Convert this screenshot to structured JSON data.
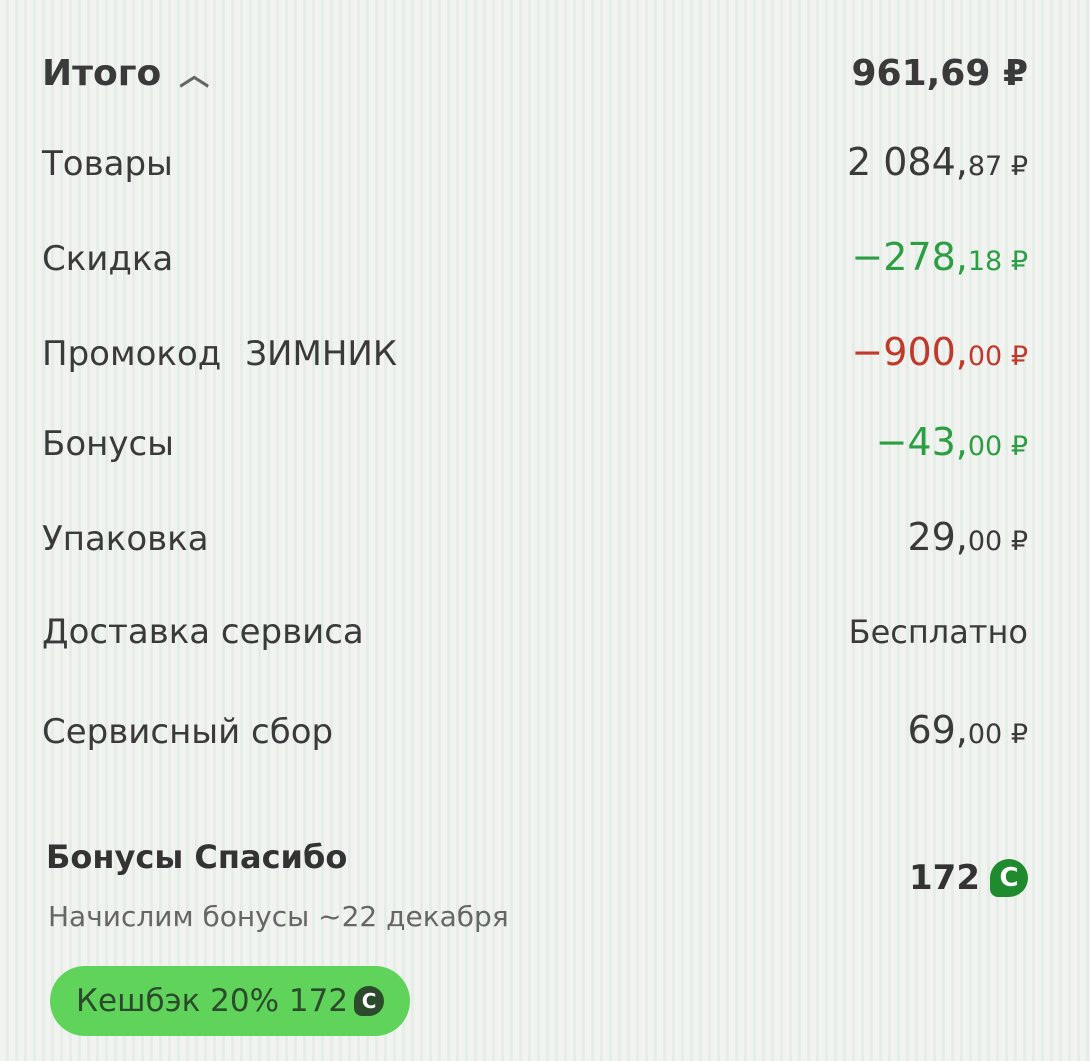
{
  "total": {
    "label": "Итого",
    "value": "961,69 ₽"
  },
  "rows": [
    {
      "label": "Товары",
      "main": "2 084,",
      "cents": "87 ₽",
      "color": "default"
    },
    {
      "label": "Скидка",
      "main": "−278,",
      "cents": "18 ₽",
      "color": "green"
    },
    {
      "label": "Промокод",
      "code": "ЗИМНИК",
      "main": "−900,",
      "cents": "00 ₽",
      "color": "red"
    },
    {
      "label": "Бонусы",
      "main": "−43,",
      "cents": "00 ₽",
      "color": "green"
    },
    {
      "label": "Упаковка",
      "main": "29,",
      "cents": "00 ₽",
      "color": "default"
    },
    {
      "label": "Доставка сервиса",
      "main": "Бесплатно",
      "cents": "",
      "color": "default"
    },
    {
      "label": "Сервисный сбор",
      "main": "69,",
      "cents": "00 ₽",
      "color": "default"
    }
  ],
  "bonus": {
    "title": "Бонусы Спасибо",
    "subtitle": "Начислим бонусы ~22 декабря",
    "value": "172",
    "icon": "spasibo-icon",
    "icon_glyph": "С",
    "cashback": "Кешбэк 20% 172"
  },
  "colors": {
    "green": "#2e9e45",
    "red": "#c0392b",
    "pill": "#5fd35a"
  }
}
